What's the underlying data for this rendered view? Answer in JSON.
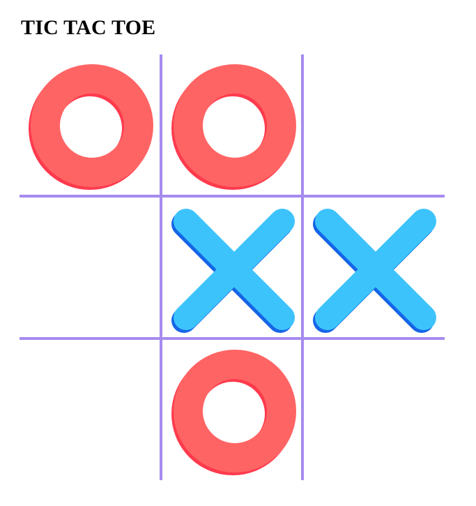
{
  "title": "TIC TAC TOE",
  "colors": {
    "grid": "#a68bef",
    "o_main": "#ff6464",
    "o_shadow": "#ff3a4d",
    "x_main": "#3dc3fc",
    "x_shadow": "#1565e6"
  },
  "board": [
    [
      "O",
      "O",
      ""
    ],
    [
      "",
      "X",
      "X"
    ],
    [
      "",
      "O",
      ""
    ]
  ],
  "icons": {
    "o": "circle-o-icon",
    "x": "cross-x-icon"
  }
}
